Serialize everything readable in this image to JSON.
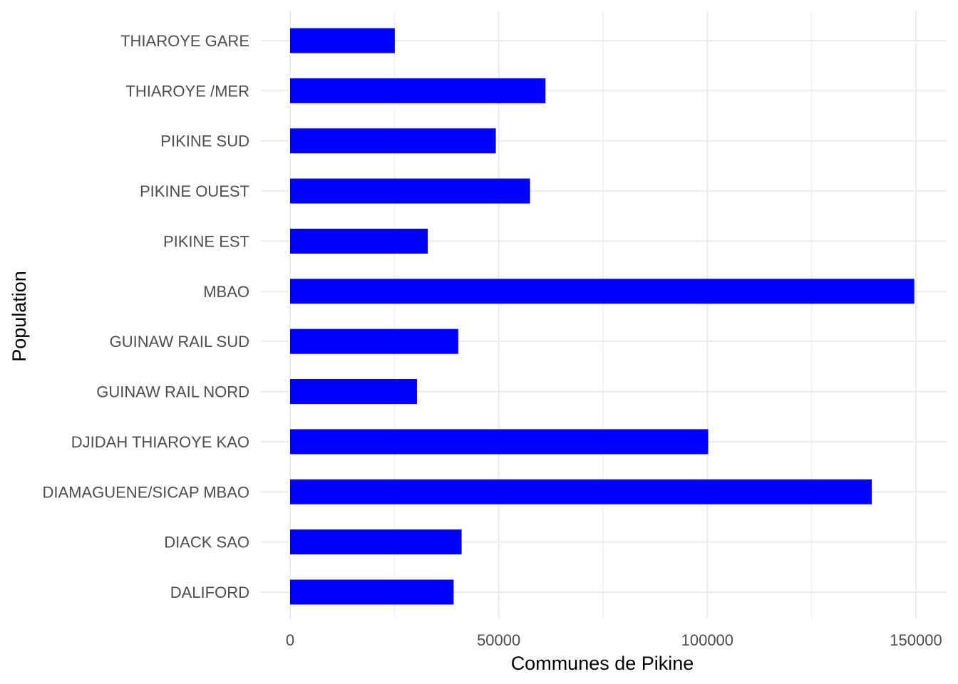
{
  "chart_data": {
    "type": "bar",
    "orientation": "horizontal",
    "categories": [
      "DALIFORD",
      "DIACK SAO",
      "DIAMAGUENE/SICAP MBAO",
      "DJIDAH THIAROYE KAO",
      "GUINAW RAIL NORD",
      "GUINAW RAIL SUD",
      "MBAO",
      "PIKINE EST",
      "PIKINE OUEST",
      "PIKINE SUD",
      "THIAROYE /MER",
      "THIAROYE GARE"
    ],
    "values": [
      39200,
      41100,
      139400,
      100200,
      30400,
      40300,
      149600,
      33000,
      57500,
      49300,
      61200,
      25100
    ],
    "xlabel": "Communes de Pikine",
    "ylabel": "Population",
    "xlim": [
      0,
      157000
    ],
    "x_ticks": [
      0,
      50000,
      100000,
      150000
    ],
    "x_tick_labels": [
      "0",
      "50000",
      "100000",
      "150000"
    ],
    "bar_color": "#0000ff",
    "grid": true,
    "grid_color": "#ebebeb",
    "legend": false
  }
}
